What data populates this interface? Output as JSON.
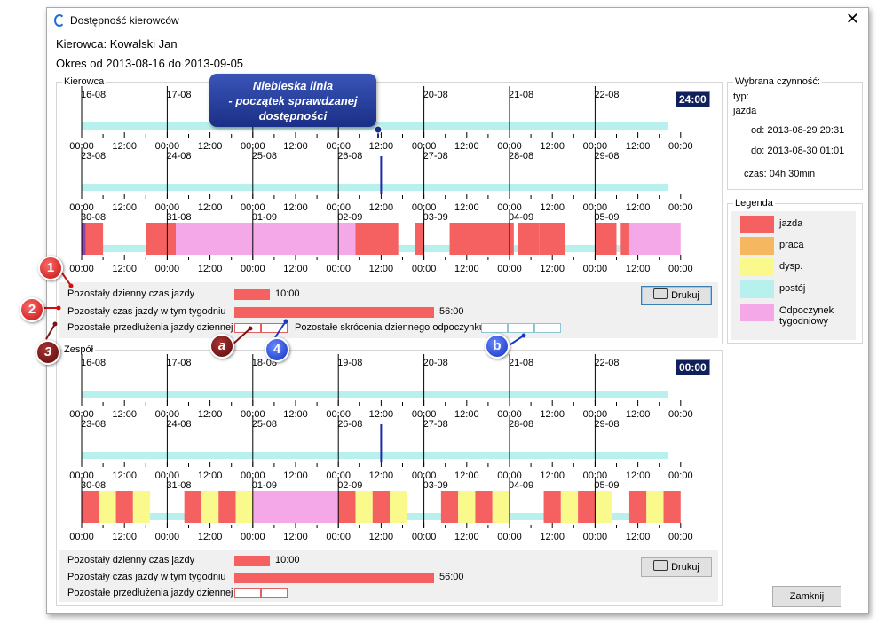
{
  "window": {
    "title": "Dostępność kierowców",
    "close_glyph": "✕"
  },
  "header": {
    "driver": "Kierowca: Kowalski Jan",
    "period": "Okres od 2013-08-16 do 2013-09-05"
  },
  "sections": {
    "driver": {
      "title": "Kierowca",
      "clock": "24:00",
      "summary": {
        "daily_label": "Pozostały dzienny czas jazdy",
        "daily_value": "10:00",
        "weekly_label": "Pozostały czas jazdy w tym tygodniu",
        "weekly_value": "56:00",
        "extensions_label": "Pozostałe przedłużenia jazdy dziennej",
        "rest_reductions_label": "Pozostałe skrócenia dziennego odpoczynku",
        "print_label": "Drukuj"
      }
    },
    "team": {
      "title": "Zespół",
      "clock": "00:00",
      "summary": {
        "daily_label": "Pozostały dzienny czas jazdy",
        "daily_value": "10:00",
        "weekly_label": "Pozostały czas jazdy w tym tygodniu",
        "weekly_value": "56:00",
        "extensions_label": "Pozostałe przedłużenia jazdy dziennej",
        "print_label": "Drukuj"
      }
    }
  },
  "rows": [
    {
      "days": [
        "16-08",
        "17-08",
        "18-08",
        "19-08",
        "20-08",
        "21-08",
        "22-08"
      ]
    },
    {
      "days": [
        "23-08",
        "24-08",
        "25-08",
        "26-08",
        "27-08",
        "28-08",
        "29-08"
      ]
    },
    {
      "days": [
        "30-08",
        "31-08",
        "01-09",
        "02-09",
        "03-09",
        "04-09",
        "05-09"
      ]
    }
  ],
  "tick_labels": [
    "00:00",
    "12:00"
  ],
  "selected_activity": {
    "title": "Wybrana czynność:",
    "type_label": "typ:",
    "type_value": "jazda",
    "from": "od: 2013-08-29 20:31",
    "to": "do: 2013-08-30 01:01",
    "duration": "czas: 04h 30min"
  },
  "legend": {
    "title": "Legenda",
    "items": [
      {
        "label": "jazda",
        "color": "#f56060"
      },
      {
        "label": "praca",
        "color": "#f5b860"
      },
      {
        "label": "dysp.",
        "color": "#fafa8c"
      },
      {
        "label": "postój",
        "color": "#b8f0ee"
      },
      {
        "label": "Odpoczynek tygodniowy",
        "color": "#f5a8e8"
      }
    ]
  },
  "close_button": "Zamknij",
  "annotations": {
    "callout": "Niebieska linia\n- początek sprawdzanej\ndostępności",
    "badges": [
      "1",
      "2",
      "3",
      "4",
      "a",
      "b"
    ]
  },
  "colors": {
    "drive": "#f56060",
    "available": "#fafa8c",
    "rest": "#b8f0ee",
    "weekly_rest": "#f5a8e8",
    "other": "#8e44ad",
    "marker": "#1e2aa8"
  },
  "timeline": {
    "driver": {
      "row1": [],
      "row2": [
        {
          "t": "drive",
          "a": 10.8,
          "b": 11.4
        },
        {
          "t": "drive",
          "a": 12.3,
          "b": 12.9
        },
        {
          "t": "drive",
          "a": 14.0,
          "b": 14.6
        },
        {
          "t": "drive",
          "a": 15.3,
          "b": 15.9
        },
        {
          "t": "drive",
          "a": 17.0,
          "b": 17.6
        },
        {
          "t": "drive",
          "a": 18.0,
          "b": 18.5
        },
        {
          "t": "drive",
          "a": 19.8,
          "b": 20.4
        },
        {
          "t": "drive",
          "a": 20.8,
          "b": 21.0
        },
        {
          "t": "other",
          "a": 21.6,
          "b": 21.9
        }
      ],
      "row3": [
        {
          "t": "other",
          "a": 0.0,
          "b": 0.05
        },
        {
          "t": "drive",
          "a": 0.05,
          "b": 0.25
        },
        {
          "t": "drive",
          "a": 0.75,
          "b": 1.1
        },
        {
          "t": "drive",
          "a": 1.2,
          "b": 1.3
        },
        {
          "t": "drive",
          "a": 2.0,
          "b": 2.5
        },
        {
          "t": "weekly",
          "a": 1.1,
          "b": 3.0
        },
        {
          "t": "weekly",
          "a": 3.0,
          "b": 3.2
        },
        {
          "t": "drive",
          "a": 3.2,
          "b": 3.7
        },
        {
          "t": "drive",
          "a": 3.9,
          "b": 4.0
        },
        {
          "t": "drive",
          "a": 4.3,
          "b": 5.05
        },
        {
          "t": "drive",
          "a": 5.1,
          "b": 5.35
        },
        {
          "t": "drive",
          "a": 5.35,
          "b": 5.65
        },
        {
          "t": "drive",
          "a": 6.0,
          "b": 6.25
        },
        {
          "t": "drive",
          "a": 6.3,
          "b": 6.4
        },
        {
          "t": "weekly",
          "a": 6.4,
          "b": 7.0
        }
      ]
    },
    "team": {
      "row1": [],
      "row2": [
        {
          "t": "drive",
          "a": 10.8,
          "b": 11.0
        },
        {
          "t": "avail",
          "a": 11.0,
          "b": 11.3
        },
        {
          "t": "drive",
          "a": 11.3,
          "b": 11.6
        },
        {
          "t": "avail",
          "a": 11.6,
          "b": 12.0
        },
        {
          "t": "drive",
          "a": 12.0,
          "b": 12.4
        },
        {
          "t": "drive",
          "a": 12.8,
          "b": 13.0
        },
        {
          "t": "drive",
          "a": 14.0,
          "b": 14.35
        },
        {
          "t": "avail",
          "a": 14.35,
          "b": 14.65
        },
        {
          "t": "drive",
          "a": 14.65,
          "b": 15.1
        },
        {
          "t": "avail",
          "a": 15.1,
          "b": 15.35
        },
        {
          "t": "drive",
          "a": 15.4,
          "b": 15.5
        },
        {
          "t": "drive",
          "a": 17.0,
          "b": 17.3
        },
        {
          "t": "avail",
          "a": 17.3,
          "b": 17.6
        },
        {
          "t": "drive",
          "a": 17.6,
          "b": 18.0
        },
        {
          "t": "avail",
          "a": 18.0,
          "b": 18.2
        }
      ],
      "row3": [
        {
          "t": "drive",
          "a": 0.0,
          "b": 0.2
        },
        {
          "t": "avail",
          "a": 0.2,
          "b": 0.4
        },
        {
          "t": "drive",
          "a": 0.4,
          "b": 0.6
        },
        {
          "t": "avail",
          "a": 0.6,
          "b": 0.8
        },
        {
          "t": "drive",
          "a": 1.2,
          "b": 1.4
        },
        {
          "t": "avail",
          "a": 1.4,
          "b": 1.6
        },
        {
          "t": "drive",
          "a": 1.6,
          "b": 1.8
        },
        {
          "t": "avail",
          "a": 1.8,
          "b": 2.0
        },
        {
          "t": "weekly",
          "a": 2.0,
          "b": 3.0
        },
        {
          "t": "drive",
          "a": 3.0,
          "b": 3.2
        },
        {
          "t": "avail",
          "a": 3.2,
          "b": 3.4
        },
        {
          "t": "drive",
          "a": 3.4,
          "b": 3.6
        },
        {
          "t": "avail",
          "a": 3.6,
          "b": 3.8
        },
        {
          "t": "drive",
          "a": 4.2,
          "b": 4.4
        },
        {
          "t": "avail",
          "a": 4.4,
          "b": 4.6
        },
        {
          "t": "drive",
          "a": 4.6,
          "b": 4.8
        },
        {
          "t": "avail",
          "a": 4.8,
          "b": 5.0
        },
        {
          "t": "drive",
          "a": 5.4,
          "b": 5.6
        },
        {
          "t": "avail",
          "a": 5.6,
          "b": 5.8
        },
        {
          "t": "drive",
          "a": 5.8,
          "b": 6.0
        },
        {
          "t": "avail",
          "a": 6.0,
          "b": 6.2
        },
        {
          "t": "drive",
          "a": 6.4,
          "b": 6.6
        },
        {
          "t": "avail",
          "a": 6.6,
          "b": 6.8
        },
        {
          "t": "drive",
          "a": 6.8,
          "b": 7.0
        }
      ]
    }
  }
}
